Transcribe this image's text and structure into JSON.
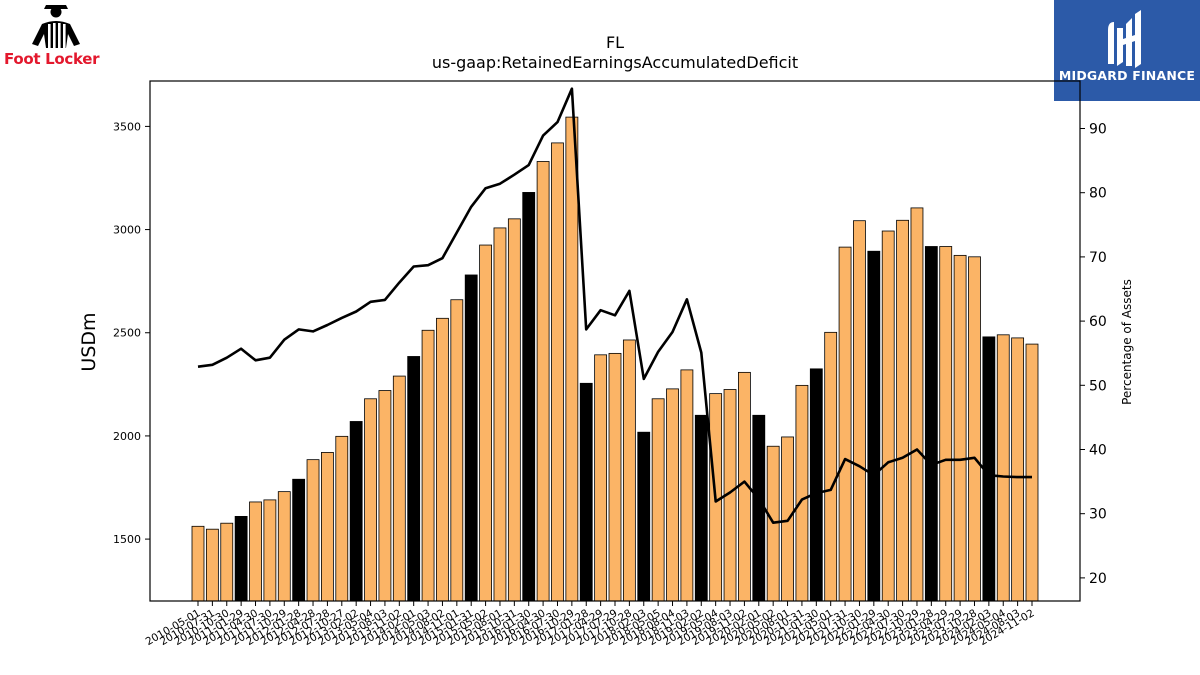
{
  "brand": {
    "left_logo_text": "Foot Locker",
    "right_logo_text": "MIDGARD FINANCE",
    "right_logo_bg": "#2c5aa8",
    "left_logo_color": "#e3182d"
  },
  "chart_data": {
    "type": "bar",
    "title": "FL",
    "subtitle": "us-gaap:RetainedEarningsAccumulatedDeficit",
    "ylabel": "USDm",
    "y2label": "Percentage of Assets",
    "ylim": [
      1200,
      3720
    ],
    "y2lim": [
      16.4,
      97.4
    ],
    "yticks": [
      1500,
      2000,
      2500,
      3000,
      3500
    ],
    "y2ticks": [
      20,
      30,
      40,
      50,
      60,
      70,
      80,
      90
    ],
    "bar_color": "#fbb466",
    "highlight_color": "#000000",
    "line_color": "#000000",
    "categories": [
      "2010-05-01",
      "2010-07-31",
      "2010-10-30",
      "2011-01-29",
      "2011-04-30",
      "2011-07-30",
      "2011-10-29",
      "2012-01-28",
      "2012-04-28",
      "2012-07-28",
      "2012-10-27",
      "2013-02-02",
      "2013-05-04",
      "2013-08-03",
      "2013-11-02",
      "2014-02-01",
      "2014-05-03",
      "2014-08-02",
      "2014-11-01",
      "2015-01-31",
      "2015-05-02",
      "2015-08-01",
      "2015-10-31",
      "2016-01-30",
      "2016-04-30",
      "2016-07-30",
      "2016-10-29",
      "2017-01-28",
      "2017-04-29",
      "2017-07-29",
      "2017-10-28",
      "2018-02-03",
      "2018-05-05",
      "2018-08-04",
      "2018-11-03",
      "2019-02-02",
      "2019-05-04",
      "2019-08-03",
      "2019-11-02",
      "2020-02-01",
      "2020-05-02",
      "2020-08-01",
      "2020-10-31",
      "2021-01-30",
      "2021-05-01",
      "2021-07-31",
      "2021-10-30",
      "2022-01-29",
      "2022-04-30",
      "2022-07-30",
      "2022-10-29",
      "2023-01-28",
      "2023-04-29",
      "2023-07-29",
      "2023-10-28",
      "2024-02-03",
      "2024-05-04",
      "2024-08-03",
      "2024-11-02"
    ],
    "tick_labels": [
      "2010-05-01",
      "2010-07-31",
      "2010-10-30",
      "2011-01-29",
      "2011-04-30",
      "2011-07-30",
      "2011-10-29",
      "2012-01-28",
      "2012-04-28",
      "2012-07-28",
      "2012-10-27",
      "2013-02-02",
      "2013-05-04",
      "2013-08-03",
      "2013-11-02",
      "2014-02-01",
      "2014-05-03",
      "2014-08-02",
      "2014-11-01",
      "2015-01-31",
      "2015-05-02",
      "2015-08-01",
      "2015-10-31",
      "2016-01-30",
      "2016-04-30",
      "2016-07-30",
      "2016-10-29",
      "2017-01-28",
      "2017-04-29",
      "2017-07-29",
      "2017-10-28",
      "2018-02-03",
      "2018-05-05",
      "2018-08-04",
      "2018-11-03",
      "2019-02-02",
      "2019-05-04",
      "2019-08-03",
      "2019-11-02",
      "2020-02-01",
      "2020-05-02",
      "2020-08-01",
      "2020-10-31",
      "2021-01-30",
      "2021-05-01",
      "2021-07-31",
      "2021-10-30",
      "2022-01-29",
      "2022-04-30",
      "2022-07-30",
      "2022-10-29",
      "2023-01-28",
      "2023-04-29",
      "2023-07-29",
      "2023-10-28",
      "2024-02-03",
      "2024-05-04",
      "2024-08-03",
      "2024-11-02"
    ],
    "values": [
      1562,
      1548,
      1577,
      1610,
      1680,
      1690,
      1730,
      1790,
      1885,
      1920,
      1998,
      2070,
      2180,
      2220,
      2290,
      2385,
      2512,
      2570,
      2660,
      2780,
      2925,
      3008,
      3052,
      3180,
      3330,
      3420,
      3545,
      2255,
      2393,
      2400,
      2465,
      2018,
      2180,
      2228,
      2320,
      2100,
      2205,
      2225,
      2308,
      2100,
      1950,
      1995,
      2245,
      2325,
      2502,
      2915,
      3043,
      2895,
      2993,
      3045,
      3105,
      2918,
      2918,
      2875,
      2868,
      2480,
      2490,
      2475,
      2445
    ],
    "highlight": [
      false,
      false,
      false,
      true,
      false,
      false,
      false,
      true,
      false,
      false,
      false,
      true,
      false,
      false,
      false,
      true,
      false,
      false,
      false,
      true,
      false,
      false,
      false,
      true,
      false,
      false,
      false,
      true,
      false,
      false,
      false,
      true,
      false,
      false,
      false,
      true,
      false,
      false,
      false,
      true,
      false,
      false,
      false,
      true,
      false,
      false,
      false,
      true,
      false,
      false,
      false,
      true,
      false,
      false,
      false,
      true,
      false,
      false,
      false
    ],
    "series": [
      {
        "values": [
          52.9,
          53.2,
          54.3,
          55.7,
          53.9,
          54.3,
          57.1,
          58.7,
          58.4,
          59.4,
          60.5,
          61.5,
          63.0,
          63.3,
          66.0,
          68.5,
          68.7,
          69.8,
          73.8,
          77.8,
          80.7,
          81.4,
          82.8,
          84.3,
          88.9,
          91.0,
          96.2,
          58.7,
          61.7,
          60.9,
          64.7,
          51.0,
          55.2,
          58.3,
          63.4,
          55.1,
          31.9,
          33.3,
          35.0,
          32.3,
          28.6,
          28.9,
          32.2,
          33.2,
          33.7,
          38.5,
          37.4,
          36.0,
          38.0,
          38.7,
          40.0,
          37.6,
          38.4,
          38.4,
          38.7,
          36.0,
          35.8,
          35.7,
          35.7
        ]
      }
    ]
  }
}
